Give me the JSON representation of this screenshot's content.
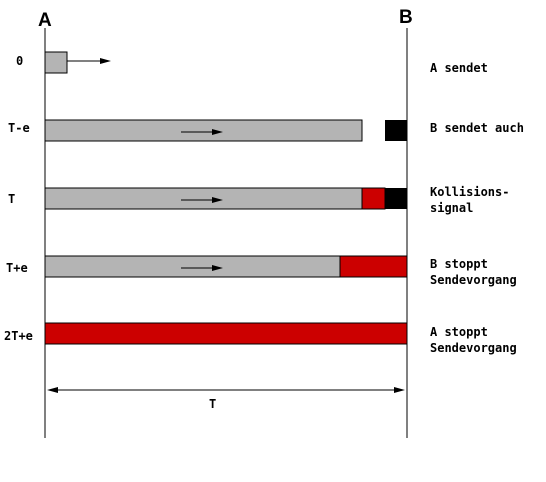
{
  "colors": {
    "gray": "#b4b4b4",
    "red": "#cc0000",
    "black": "#000000",
    "line": "#000000"
  },
  "stations": {
    "a": "A",
    "b": "B"
  },
  "rows": [
    {
      "time": "0",
      "desc": [
        "A sendet"
      ]
    },
    {
      "time": "T-e",
      "desc": [
        "B sendet auch"
      ]
    },
    {
      "time": "T",
      "desc": [
        "Kollisions-",
        "signal"
      ]
    },
    {
      "time": "T+e",
      "desc": [
        "B stoppt",
        "Sendevorgang"
      ]
    },
    {
      "time": "2T+e",
      "desc": [
        "A stoppt",
        "Sendevorgang"
      ]
    }
  ],
  "span_label": "T"
}
